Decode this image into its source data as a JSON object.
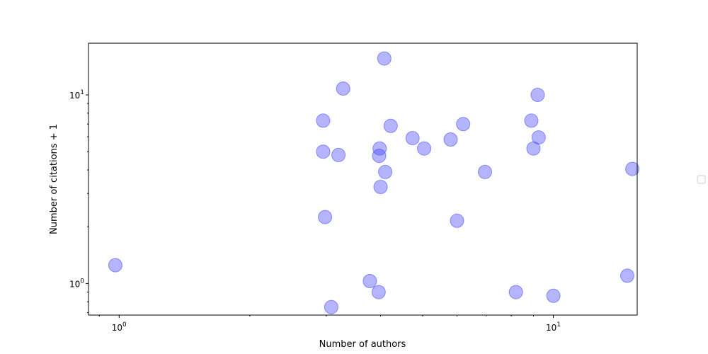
{
  "chart_data": {
    "type": "scatter",
    "xlabel": "Number of authors",
    "ylabel": "Number of citations + 1",
    "xscale": "log",
    "yscale": "log",
    "xlim": [
      0.85,
      15.6
    ],
    "ylim": [
      0.68,
      18.8
    ],
    "x_ticks": [
      {
        "value": 1,
        "label": "10",
        "exp": "0"
      },
      {
        "value": 10,
        "label": "10",
        "exp": "1"
      }
    ],
    "y_ticks": [
      {
        "value": 1,
        "label": "10",
        "exp": "0"
      },
      {
        "value": 10,
        "label": "10",
        "exp": "1"
      }
    ],
    "grid": false,
    "legend": {
      "placement": "right",
      "entries": []
    },
    "marker_color": "#4444ff",
    "marker_opacity": 0.4,
    "points": [
      {
        "x": 0.98,
        "y": 1.25
      },
      {
        "x": 2.95,
        "y": 7.3
      },
      {
        "x": 2.95,
        "y": 5.0
      },
      {
        "x": 2.98,
        "y": 2.25
      },
      {
        "x": 3.08,
        "y": 0.75
      },
      {
        "x": 3.2,
        "y": 4.8
      },
      {
        "x": 3.28,
        "y": 10.8
      },
      {
        "x": 3.78,
        "y": 1.03
      },
      {
        "x": 3.96,
        "y": 0.9
      },
      {
        "x": 3.98,
        "y": 5.2
      },
      {
        "x": 3.97,
        "y": 4.75
      },
      {
        "x": 4.0,
        "y": 3.25
      },
      {
        "x": 4.08,
        "y": 15.6
      },
      {
        "x": 4.1,
        "y": 3.9
      },
      {
        "x": 4.22,
        "y": 6.85
      },
      {
        "x": 4.74,
        "y": 5.9
      },
      {
        "x": 5.04,
        "y": 5.2
      },
      {
        "x": 5.8,
        "y": 5.8
      },
      {
        "x": 6.0,
        "y": 2.15
      },
      {
        "x": 6.2,
        "y": 7.0
      },
      {
        "x": 6.96,
        "y": 3.9
      },
      {
        "x": 8.2,
        "y": 0.9
      },
      {
        "x": 8.9,
        "y": 7.3
      },
      {
        "x": 9.0,
        "y": 5.2
      },
      {
        "x": 9.2,
        "y": 10.0
      },
      {
        "x": 9.25,
        "y": 5.95
      },
      {
        "x": 10.0,
        "y": 0.86
      },
      {
        "x": 14.8,
        "y": 1.1
      },
      {
        "x": 15.2,
        "y": 4.05
      }
    ]
  }
}
